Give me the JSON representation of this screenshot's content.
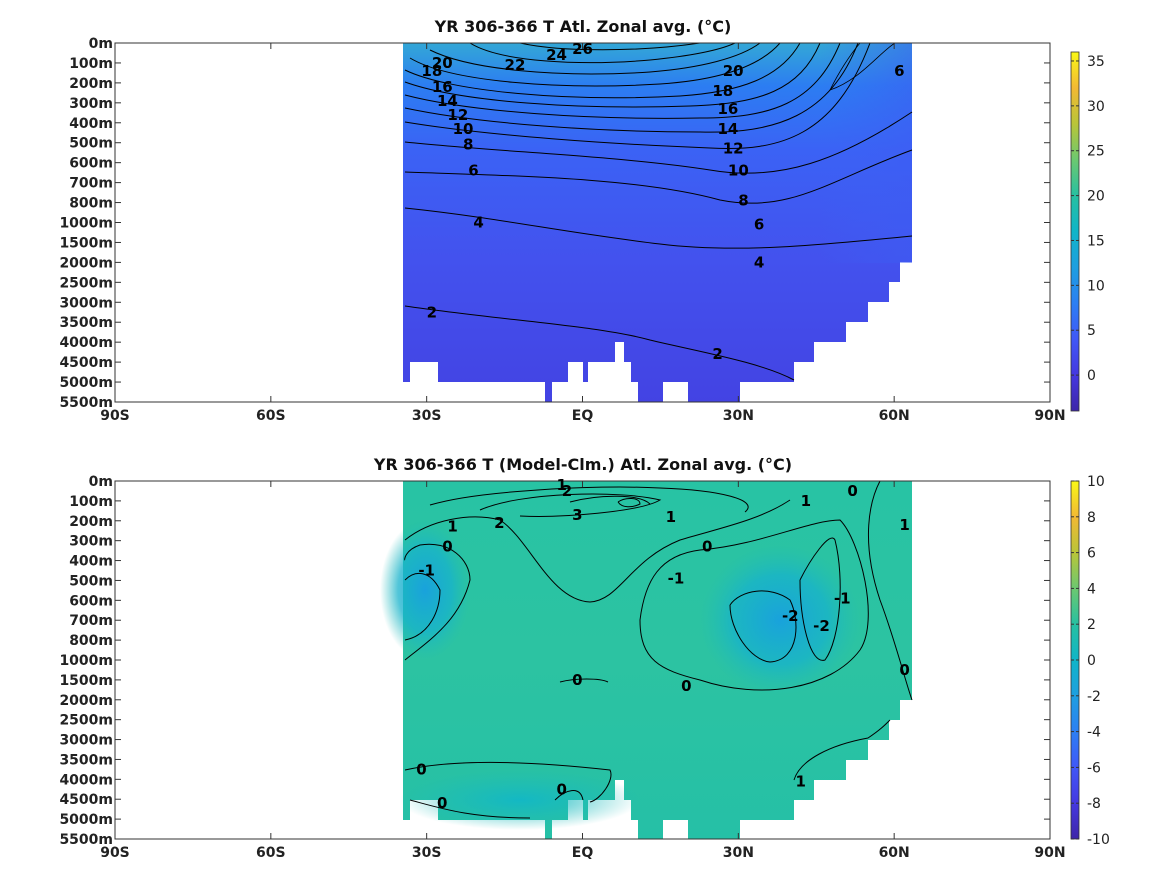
{
  "chart_data": [
    {
      "type": "heatmap",
      "title": "YR 306-366 T Atl. Zonal avg. (°C)",
      "x_ticks": [
        "90S",
        "60S",
        "30S",
        "EQ",
        "30N",
        "60N",
        "90N"
      ],
      "x_tick_values": [
        -90,
        -60,
        -30,
        0,
        30,
        60,
        90
      ],
      "xlim": [
        -90,
        90
      ],
      "y_ticks": [
        "0m",
        "100m",
        "200m",
        "300m",
        "400m",
        "500m",
        "600m",
        "700m",
        "800m",
        "1000m",
        "1500m",
        "2000m",
        "2500m",
        "3000m",
        "3500m",
        "4000m",
        "4500m",
        "5000m",
        "5500m"
      ],
      "ylim_depth": [
        "0m",
        "5500m"
      ],
      "data_extent_lat": [
        -34,
        63
      ],
      "colorbar": {
        "ticks": [
          0,
          5,
          10,
          15,
          20,
          25,
          30,
          35
        ],
        "range": [
          -4,
          36
        ]
      },
      "contour_labels": [
        {
          "text": "26",
          "lat": 0,
          "depth_level": 0.3
        },
        {
          "text": "24",
          "lat": -5,
          "depth_level": 0.6
        },
        {
          "text": "22",
          "lat": -13,
          "depth_level": 1.1
        },
        {
          "text": "20",
          "lat": -27,
          "depth_level": 1.0
        },
        {
          "text": "20",
          "lat": 29,
          "depth_level": 1.4
        },
        {
          "text": "18",
          "lat": -29,
          "depth_level": 1.4
        },
        {
          "text": "18",
          "lat": 27,
          "depth_level": 2.4
        },
        {
          "text": "16",
          "lat": -27,
          "depth_level": 2.2
        },
        {
          "text": "16",
          "lat": 28,
          "depth_level": 3.3
        },
        {
          "text": "14",
          "lat": -26,
          "depth_level": 2.9
        },
        {
          "text": "14",
          "lat": 28,
          "depth_level": 4.3
        },
        {
          "text": "12",
          "lat": -24,
          "depth_level": 3.6
        },
        {
          "text": "12",
          "lat": 29,
          "depth_level": 5.3
        },
        {
          "text": "10",
          "lat": -23,
          "depth_level": 4.3
        },
        {
          "text": "10",
          "lat": 30,
          "depth_level": 6.4
        },
        {
          "text": "8",
          "lat": -22,
          "depth_level": 5.1
        },
        {
          "text": "8",
          "lat": 31,
          "depth_level": 7.9
        },
        {
          "text": "6",
          "lat": -21,
          "depth_level": 6.4
        },
        {
          "text": "6",
          "lat": 34,
          "depth_level": 9.1
        },
        {
          "text": "6",
          "lat": 61,
          "depth_level": 1.4
        },
        {
          "text": "4",
          "lat": -20,
          "depth_level": 9.0
        },
        {
          "text": "4",
          "lat": 34,
          "depth_level": 11.0
        },
        {
          "text": "2",
          "lat": -29,
          "depth_level": 13.5
        },
        {
          "text": "2",
          "lat": 26,
          "depth_level": 15.6
        }
      ]
    },
    {
      "type": "heatmap",
      "title": "YR 306-366 T (Model-Clm.) Atl. Zonal avg. (°C)",
      "x_ticks": [
        "90S",
        "60S",
        "30S",
        "EQ",
        "30N",
        "60N",
        "90N"
      ],
      "x_tick_values": [
        -90,
        -60,
        -30,
        0,
        30,
        60,
        90
      ],
      "xlim": [
        -90,
        90
      ],
      "y_ticks": [
        "0m",
        "100m",
        "200m",
        "300m",
        "400m",
        "500m",
        "600m",
        "700m",
        "800m",
        "1000m",
        "1500m",
        "2000m",
        "2500m",
        "3000m",
        "3500m",
        "4000m",
        "4500m",
        "5000m",
        "5500m"
      ],
      "ylim_depth": [
        "0m",
        "5500m"
      ],
      "data_extent_lat": [
        -34,
        63
      ],
      "colorbar": {
        "ticks": [
          -10,
          -8,
          -6,
          -4,
          -2,
          0,
          2,
          4,
          6,
          8,
          10
        ],
        "range": [
          -10,
          10
        ]
      },
      "contour_labels": [
        {
          "text": "1",
          "lat": -4,
          "depth_level": 0.2
        },
        {
          "text": "2",
          "lat": -3,
          "depth_level": 0.5
        },
        {
          "text": "3",
          "lat": -1,
          "depth_level": 1.7
        },
        {
          "text": "1",
          "lat": -25,
          "depth_level": 2.3
        },
        {
          "text": "2",
          "lat": -16,
          "depth_level": 2.1
        },
        {
          "text": "1",
          "lat": 17,
          "depth_level": 1.8
        },
        {
          "text": "1",
          "lat": 43,
          "depth_level": 1.0
        },
        {
          "text": "0",
          "lat": 52,
          "depth_level": 0.5
        },
        {
          "text": "1",
          "lat": 62,
          "depth_level": 2.2
        },
        {
          "text": "0",
          "lat": -26,
          "depth_level": 3.3
        },
        {
          "text": "-1",
          "lat": -30,
          "depth_level": 4.5
        },
        {
          "text": "0",
          "lat": 24,
          "depth_level": 3.3
        },
        {
          "text": "-1",
          "lat": 18,
          "depth_level": 4.9
        },
        {
          "text": "-2",
          "lat": 40,
          "depth_level": 6.8
        },
        {
          "text": "-2",
          "lat": 46,
          "depth_level": 7.3
        },
        {
          "text": "-1",
          "lat": 50,
          "depth_level": 5.9
        },
        {
          "text": "0",
          "lat": 62,
          "depth_level": 9.5
        },
        {
          "text": "0",
          "lat": -1,
          "depth_level": 10.0
        },
        {
          "text": "0",
          "lat": 20,
          "depth_level": 10.3
        },
        {
          "text": "0",
          "lat": -31,
          "depth_level": 14.5
        },
        {
          "text": "0",
          "lat": -27,
          "depth_level": 16.2
        },
        {
          "text": "0",
          "lat": -4,
          "depth_level": 15.5
        },
        {
          "text": "1",
          "lat": 42,
          "depth_level": 15.1
        }
      ]
    }
  ]
}
